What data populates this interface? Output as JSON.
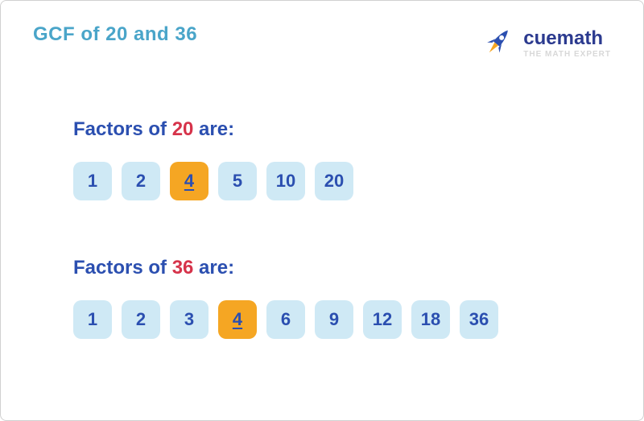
{
  "colors": {
    "title": "#4aa5c9",
    "section_label": "#2b4fb0",
    "number_accent": "#d6334a",
    "box_normal_bg": "#cfe9f5",
    "box_normal_fg": "#2b4fb0",
    "box_highlight_bg": "#f5a623",
    "box_highlight_fg": "#2b4fb0",
    "logo_brand": "#2b3a8f",
    "logo_tagline": "#d8d8d8",
    "rocket_body": "#2b4fb0",
    "rocket_flame": "#f5a623"
  },
  "page": {
    "title_prefix": "GCF of ",
    "title_a": "20",
    "title_mid": " and ",
    "title_b": "36"
  },
  "logo": {
    "brand": "cuemath",
    "tagline": "THE MATH EXPERT"
  },
  "section1": {
    "label_prefix": "Factors of ",
    "label_num": "20",
    "label_suffix": " are:",
    "factors": [
      {
        "v": "1",
        "hl": false
      },
      {
        "v": "2",
        "hl": false
      },
      {
        "v": "4",
        "hl": true
      },
      {
        "v": "5",
        "hl": false
      },
      {
        "v": "10",
        "hl": false
      },
      {
        "v": "20",
        "hl": false
      }
    ]
  },
  "section2": {
    "label_prefix": "Factors of ",
    "label_num": "36",
    "label_suffix": " are:",
    "factors": [
      {
        "v": "1",
        "hl": false
      },
      {
        "v": "2",
        "hl": false
      },
      {
        "v": "3",
        "hl": false
      },
      {
        "v": "4",
        "hl": true
      },
      {
        "v": "6",
        "hl": false
      },
      {
        "v": "9",
        "hl": false
      },
      {
        "v": "12",
        "hl": false
      },
      {
        "v": "18",
        "hl": false
      },
      {
        "v": "36",
        "hl": false
      }
    ]
  }
}
